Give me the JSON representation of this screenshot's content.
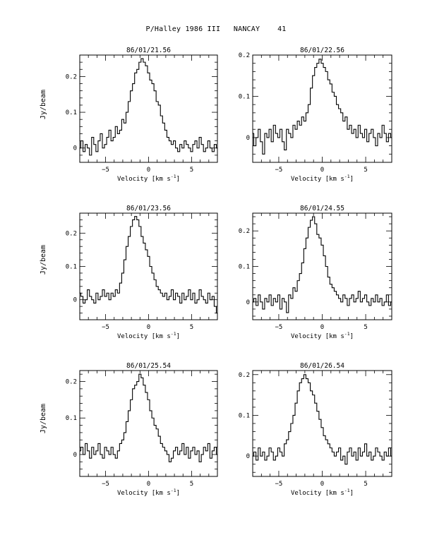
{
  "page_title": "P/Halley 1986 III   NANCAY    41",
  "ylabel": "Jy/beam",
  "xlabel_text": "Velocity [km s",
  "xlabel_sup": "-1",
  "xlabel_close": "]",
  "chart_data": [
    {
      "type": "line",
      "title": "86/01/21.56",
      "xlim": [
        -8,
        8
      ],
      "ylim": [
        -0.04,
        0.26
      ],
      "xticks": [
        -5,
        0,
        5
      ],
      "yticks": [
        0,
        0.1,
        0.2
      ],
      "ytick_labels": [
        "0",
        "0.1",
        "0.2"
      ],
      "x": [
        -8,
        -7.75,
        -7.5,
        -7.25,
        -7,
        -6.75,
        -6.5,
        -6.25,
        -6,
        -5.75,
        -5.5,
        -5.25,
        -5,
        -4.75,
        -4.5,
        -4.25,
        -4,
        -3.75,
        -3.5,
        -3.25,
        -3,
        -2.75,
        -2.5,
        -2.25,
        -2,
        -1.75,
        -1.5,
        -1.25,
        -1,
        -0.75,
        -0.5,
        -0.25,
        0,
        0.25,
        0.5,
        0.75,
        1,
        1.25,
        1.5,
        1.75,
        2,
        2.25,
        2.5,
        2.75,
        3,
        3.25,
        3.5,
        3.75,
        4,
        4.25,
        4.5,
        4.75,
        5,
        5.25,
        5.5,
        5.75,
        6,
        6.25,
        6.5,
        6.75,
        7,
        7.25,
        7.5,
        7.75,
        8
      ],
      "series": [
        {
          "values": [
            0.0,
            0.02,
            -0.01,
            0.01,
            0.0,
            -0.02,
            0.03,
            0.01,
            -0.01,
            0.02,
            0.04,
            0.0,
            0.01,
            0.03,
            0.05,
            0.02,
            0.03,
            0.06,
            0.04,
            0.05,
            0.08,
            0.07,
            0.1,
            0.13,
            0.16,
            0.18,
            0.21,
            0.22,
            0.24,
            0.25,
            0.24,
            0.23,
            0.21,
            0.19,
            0.18,
            0.16,
            0.13,
            0.12,
            0.09,
            0.07,
            0.05,
            0.03,
            0.02,
            0.01,
            0.02,
            0.0,
            -0.01,
            0.01,
            0.0,
            0.02,
            0.01,
            0.0,
            -0.01,
            0.01,
            0.02,
            0.0,
            0.03,
            0.01,
            -0.01,
            0.0,
            0.02,
            0.0,
            -0.01,
            0.01,
            0.0
          ]
        }
      ]
    },
    {
      "type": "line",
      "title": "86/01/22.56",
      "xlim": [
        -8,
        8
      ],
      "ylim": [
        -0.06,
        0.2
      ],
      "xticks": [
        -5,
        0,
        5
      ],
      "yticks": [
        0,
        0.1,
        0.2
      ],
      "ytick_labels": [
        "0",
        "0.1",
        "0.2"
      ],
      "x": [
        -8,
        -7.75,
        -7.5,
        -7.25,
        -7,
        -6.75,
        -6.5,
        -6.25,
        -6,
        -5.75,
        -5.5,
        -5.25,
        -5,
        -4.75,
        -4.5,
        -4.25,
        -4,
        -3.75,
        -3.5,
        -3.25,
        -3,
        -2.75,
        -2.5,
        -2.25,
        -2,
        -1.75,
        -1.5,
        -1.25,
        -1,
        -0.75,
        -0.5,
        -0.25,
        0,
        0.25,
        0.5,
        0.75,
        1,
        1.25,
        1.5,
        1.75,
        2,
        2.25,
        2.5,
        2.75,
        3,
        3.25,
        3.5,
        3.75,
        4,
        4.25,
        4.5,
        4.75,
        5,
        5.25,
        5.5,
        5.75,
        6,
        6.25,
        6.5,
        6.75,
        7,
        7.25,
        7.5,
        7.75,
        8
      ],
      "series": [
        {
          "values": [
            0.01,
            -0.02,
            0.0,
            0.02,
            -0.01,
            -0.04,
            0.01,
            0.0,
            0.02,
            -0.01,
            0.03,
            0.01,
            0.0,
            0.02,
            -0.01,
            -0.03,
            0.02,
            0.01,
            0.0,
            0.03,
            0.02,
            0.04,
            0.03,
            0.05,
            0.04,
            0.06,
            0.08,
            0.12,
            0.15,
            0.17,
            0.18,
            0.19,
            0.18,
            0.17,
            0.16,
            0.14,
            0.13,
            0.11,
            0.1,
            0.08,
            0.07,
            0.06,
            0.04,
            0.05,
            0.02,
            0.03,
            0.01,
            0.02,
            0.0,
            0.03,
            0.01,
            0.0,
            0.02,
            -0.01,
            0.01,
            0.02,
            0.0,
            -0.02,
            0.01,
            0.0,
            0.03,
            0.01,
            -0.01,
            0.01,
            0.0
          ]
        }
      ]
    },
    {
      "type": "line",
      "title": "86/01/23.56",
      "xlim": [
        -8,
        8
      ],
      "ylim": [
        -0.06,
        0.26
      ],
      "xticks": [
        -5,
        0,
        5
      ],
      "yticks": [
        0,
        0.1,
        0.2
      ],
      "ytick_labels": [
        "0",
        "0.1",
        "0.2"
      ],
      "x": [
        -8,
        -7.75,
        -7.5,
        -7.25,
        -7,
        -6.75,
        -6.5,
        -6.25,
        -6,
        -5.75,
        -5.5,
        -5.25,
        -5,
        -4.75,
        -4.5,
        -4.25,
        -4,
        -3.75,
        -3.5,
        -3.25,
        -3,
        -2.75,
        -2.5,
        -2.25,
        -2,
        -1.75,
        -1.5,
        -1.25,
        -1,
        -0.75,
        -0.5,
        -0.25,
        0,
        0.25,
        0.5,
        0.75,
        1,
        1.25,
        1.5,
        1.75,
        2,
        2.25,
        2.5,
        2.75,
        3,
        3.25,
        3.5,
        3.75,
        4,
        4.25,
        4.5,
        4.75,
        5,
        5.25,
        5.5,
        5.75,
        6,
        6.25,
        6.5,
        6.75,
        7,
        7.25,
        7.5,
        7.75,
        8
      ],
      "series": [
        {
          "values": [
            0.02,
            0.01,
            -0.01,
            0.0,
            0.03,
            0.01,
            0.0,
            -0.01,
            0.02,
            0.0,
            0.01,
            0.03,
            0.01,
            0.02,
            0.0,
            0.02,
            0.01,
            0.03,
            0.02,
            0.05,
            0.08,
            0.12,
            0.16,
            0.19,
            0.22,
            0.24,
            0.25,
            0.24,
            0.22,
            0.19,
            0.17,
            0.15,
            0.13,
            0.1,
            0.08,
            0.06,
            0.04,
            0.03,
            0.02,
            0.01,
            0.02,
            0.0,
            0.01,
            0.03,
            0.0,
            0.02,
            0.01,
            -0.01,
            0.02,
            0.0,
            0.01,
            0.03,
            0.0,
            0.02,
            -0.01,
            0.0,
            0.03,
            0.01,
            0.0,
            -0.01,
            0.02,
            0.0,
            0.01,
            -0.02,
            -0.04
          ]
        }
      ]
    },
    {
      "type": "line",
      "title": "86/01/24.55",
      "xlim": [
        -8,
        8
      ],
      "ylim": [
        -0.05,
        0.25
      ],
      "xticks": [
        -5,
        0,
        5
      ],
      "yticks": [
        0,
        0.1,
        0.2
      ],
      "ytick_labels": [
        "0",
        "0.1",
        "0.2"
      ],
      "x": [
        -8,
        -7.75,
        -7.5,
        -7.25,
        -7,
        -6.75,
        -6.5,
        -6.25,
        -6,
        -5.75,
        -5.5,
        -5.25,
        -5,
        -4.75,
        -4.5,
        -4.25,
        -4,
        -3.75,
        -3.5,
        -3.25,
        -3,
        -2.75,
        -2.5,
        -2.25,
        -2,
        -1.75,
        -1.5,
        -1.25,
        -1,
        -0.75,
        -0.5,
        -0.25,
        0,
        0.25,
        0.5,
        0.75,
        1,
        1.25,
        1.5,
        1.75,
        2,
        2.25,
        2.5,
        2.75,
        3,
        3.25,
        3.5,
        3.75,
        4,
        4.25,
        4.5,
        4.75,
        5,
        5.25,
        5.5,
        5.75,
        6,
        6.25,
        6.5,
        6.75,
        7,
        7.25,
        7.5,
        7.75,
        8
      ],
      "series": [
        {
          "values": [
            0.0,
            0.01,
            -0.01,
            0.02,
            0.0,
            -0.02,
            0.01,
            0.0,
            0.02,
            -0.01,
            0.01,
            0.0,
            0.02,
            -0.02,
            0.01,
            0.0,
            -0.03,
            0.02,
            0.01,
            0.04,
            0.03,
            0.06,
            0.08,
            0.11,
            0.15,
            0.18,
            0.21,
            0.23,
            0.24,
            0.22,
            0.19,
            0.18,
            0.16,
            0.13,
            0.1,
            0.07,
            0.05,
            0.04,
            0.03,
            0.02,
            0.01,
            0.0,
            0.02,
            0.01,
            -0.01,
            0.01,
            0.02,
            0.0,
            0.01,
            0.03,
            0.0,
            0.01,
            0.02,
            0.0,
            -0.01,
            0.01,
            0.0,
            0.02,
            0.0,
            0.01,
            -0.01,
            0.0,
            0.02,
            -0.01,
            0.0
          ]
        }
      ]
    },
    {
      "type": "line",
      "title": "86/01/25.54",
      "xlim": [
        -8,
        8
      ],
      "ylim": [
        -0.06,
        0.23
      ],
      "xticks": [
        -5,
        0,
        5
      ],
      "yticks": [
        0,
        0.1,
        0.2
      ],
      "ytick_labels": [
        "0",
        "0.1",
        "0.2"
      ],
      "x": [
        -8,
        -7.75,
        -7.5,
        -7.25,
        -7,
        -6.75,
        -6.5,
        -6.25,
        -6,
        -5.75,
        -5.5,
        -5.25,
        -5,
        -4.75,
        -4.5,
        -4.25,
        -4,
        -3.75,
        -3.5,
        -3.25,
        -3,
        -2.75,
        -2.5,
        -2.25,
        -2,
        -1.75,
        -1.5,
        -1.25,
        -1,
        -0.75,
        -0.5,
        -0.25,
        0,
        0.25,
        0.5,
        0.75,
        1,
        1.25,
        1.5,
        1.75,
        2,
        2.25,
        2.5,
        2.75,
        3,
        3.25,
        3.5,
        3.75,
        4,
        4.25,
        4.5,
        4.75,
        5,
        5.25,
        5.5,
        5.75,
        6,
        6.25,
        6.5,
        6.75,
        7,
        7.25,
        7.5,
        7.75,
        8
      ],
      "series": [
        {
          "values": [
            0.01,
            0.02,
            0.0,
            0.03,
            0.01,
            -0.01,
            0.02,
            0.0,
            0.01,
            0.03,
            0.0,
            -0.01,
            0.02,
            0.01,
            0.0,
            0.02,
            0.0,
            -0.01,
            0.01,
            0.03,
            0.04,
            0.06,
            0.09,
            0.12,
            0.15,
            0.18,
            0.19,
            0.2,
            0.22,
            0.21,
            0.19,
            0.17,
            0.15,
            0.12,
            0.1,
            0.08,
            0.07,
            0.05,
            0.03,
            0.02,
            0.01,
            0.0,
            -0.02,
            -0.01,
            0.01,
            0.02,
            0.0,
            0.01,
            0.03,
            0.0,
            0.02,
            -0.01,
            0.01,
            0.02,
            0.0,
            0.01,
            -0.02,
            0.0,
            0.02,
            0.01,
            0.03,
            -0.01,
            0.01,
            0.02,
            0.0
          ]
        }
      ]
    },
    {
      "type": "line",
      "title": "86/01/26.54",
      "xlim": [
        -8,
        8
      ],
      "ylim": [
        -0.05,
        0.21
      ],
      "xticks": [
        -5,
        0,
        5
      ],
      "yticks": [
        0,
        0.1,
        0.2
      ],
      "ytick_labels": [
        "0",
        "0.1",
        "0.2"
      ],
      "x": [
        -8,
        -7.75,
        -7.5,
        -7.25,
        -7,
        -6.75,
        -6.5,
        -6.25,
        -6,
        -5.75,
        -5.5,
        -5.25,
        -5,
        -4.75,
        -4.5,
        -4.25,
        -4,
        -3.75,
        -3.5,
        -3.25,
        -3,
        -2.75,
        -2.5,
        -2.25,
        -2,
        -1.75,
        -1.5,
        -1.25,
        -1,
        -0.75,
        -0.5,
        -0.25,
        0,
        0.25,
        0.5,
        0.75,
        1,
        1.25,
        1.5,
        1.75,
        2,
        2.25,
        2.5,
        2.75,
        3,
        3.25,
        3.5,
        3.75,
        4,
        4.25,
        4.5,
        4.75,
        5,
        5.25,
        5.5,
        5.75,
        6,
        6.25,
        6.5,
        6.75,
        7,
        7.25,
        7.5,
        7.75,
        8
      ],
      "series": [
        {
          "values": [
            0.0,
            0.01,
            -0.01,
            0.02,
            0.0,
            0.01,
            -0.01,
            0.0,
            0.02,
            0.01,
            -0.01,
            0.0,
            0.02,
            0.01,
            0.0,
            0.03,
            0.04,
            0.06,
            0.08,
            0.1,
            0.13,
            0.16,
            0.18,
            0.19,
            0.2,
            0.19,
            0.18,
            0.16,
            0.15,
            0.13,
            0.11,
            0.09,
            0.07,
            0.05,
            0.04,
            0.03,
            0.02,
            0.01,
            0.0,
            0.01,
            0.02,
            -0.01,
            0.0,
            -0.02,
            0.01,
            0.02,
            0.0,
            0.01,
            -0.01,
            0.02,
            0.0,
            0.01,
            0.03,
            0.0,
            0.01,
            -0.01,
            0.0,
            0.02,
            0.01,
            0.0,
            -0.01,
            0.01,
            0.0,
            0.02,
            0.0
          ]
        }
      ]
    }
  ]
}
